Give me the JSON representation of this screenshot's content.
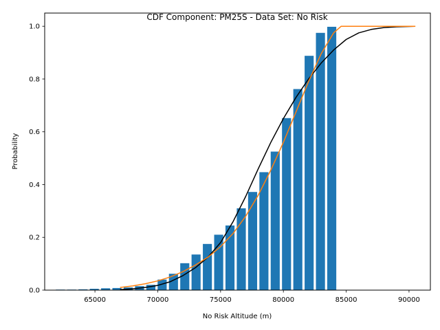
{
  "chart_data": {
    "type": "bar",
    "title": "CDF Component: PM25S - Data Set: No Risk",
    "xlabel": "No Risk Altitude (m)",
    "ylabel": "Probability",
    "xlim": [
      61000,
      91700
    ],
    "ylim": [
      0,
      1.05
    ],
    "xticks": [
      {
        "value": 65000,
        "label": "65000"
      },
      {
        "value": 70000,
        "label": "70000"
      },
      {
        "value": 75000,
        "label": "75000"
      },
      {
        "value": 80000,
        "label": "80000"
      },
      {
        "value": 85000,
        "label": "85000"
      },
      {
        "value": 90000,
        "label": "90000"
      }
    ],
    "yticks": [
      {
        "value": 0.0,
        "label": "0.0"
      },
      {
        "value": 0.2,
        "label": "0.2"
      },
      {
        "value": 0.4,
        "label": "0.4"
      },
      {
        "value": 0.6,
        "label": "0.6"
      },
      {
        "value": 0.8,
        "label": "0.8"
      },
      {
        "value": 1.0,
        "label": "1.0"
      }
    ],
    "bar_color": "#1f77b4",
    "bar_width": 720,
    "bars": {
      "x": [
        62250,
        63150,
        64050,
        64950,
        65850,
        66750,
        67650,
        68550,
        69450,
        70350,
        71250,
        72150,
        73050,
        73950,
        74850,
        75750,
        76650,
        77550,
        78450,
        79350,
        80250,
        81150,
        82050,
        82950,
        83850,
        84750
      ],
      "values": [
        0.002,
        0.002,
        0.003,
        0.005,
        0.007,
        0.008,
        0.01,
        0.015,
        0.02,
        0.04,
        0.062,
        0.102,
        0.135,
        0.175,
        0.21,
        0.245,
        0.31,
        0.372,
        0.447,
        0.525,
        0.652,
        0.762,
        0.888,
        0.975,
        0.998,
        0.0
      ]
    },
    "series": [
      {
        "color": "#000000",
        "x": [
          67000,
          68000,
          69000,
          70000,
          71000,
          72000,
          73000,
          74000,
          75000,
          76000,
          77000,
          78000,
          79000,
          80000,
          81000,
          82000,
          83000,
          84000,
          85000,
          86000,
          87000,
          88000,
          89000,
          90500
        ],
        "values": [
          0.002,
          0.005,
          0.01,
          0.018,
          0.032,
          0.055,
          0.085,
          0.125,
          0.18,
          0.26,
          0.355,
          0.46,
          0.56,
          0.65,
          0.73,
          0.8,
          0.86,
          0.91,
          0.95,
          0.975,
          0.988,
          0.995,
          0.998,
          1.0
        ]
      },
      {
        "color": "#ff7f0e",
        "x": [
          67000,
          68000,
          69000,
          70000,
          71000,
          72000,
          73000,
          74000,
          75000,
          76000,
          77000,
          78000,
          79000,
          80000,
          81000,
          82000,
          83000,
          84000,
          84600,
          85000,
          86000,
          87000,
          88000,
          89000,
          90500
        ],
        "values": [
          0.01,
          0.016,
          0.024,
          0.035,
          0.05,
          0.07,
          0.095,
          0.125,
          0.165,
          0.215,
          0.28,
          0.36,
          0.455,
          0.56,
          0.675,
          0.79,
          0.895,
          0.975,
          1.0,
          1.0,
          1.0,
          1.0,
          1.0,
          1.0,
          1.0
        ]
      }
    ],
    "grid": false,
    "legend": "none"
  }
}
